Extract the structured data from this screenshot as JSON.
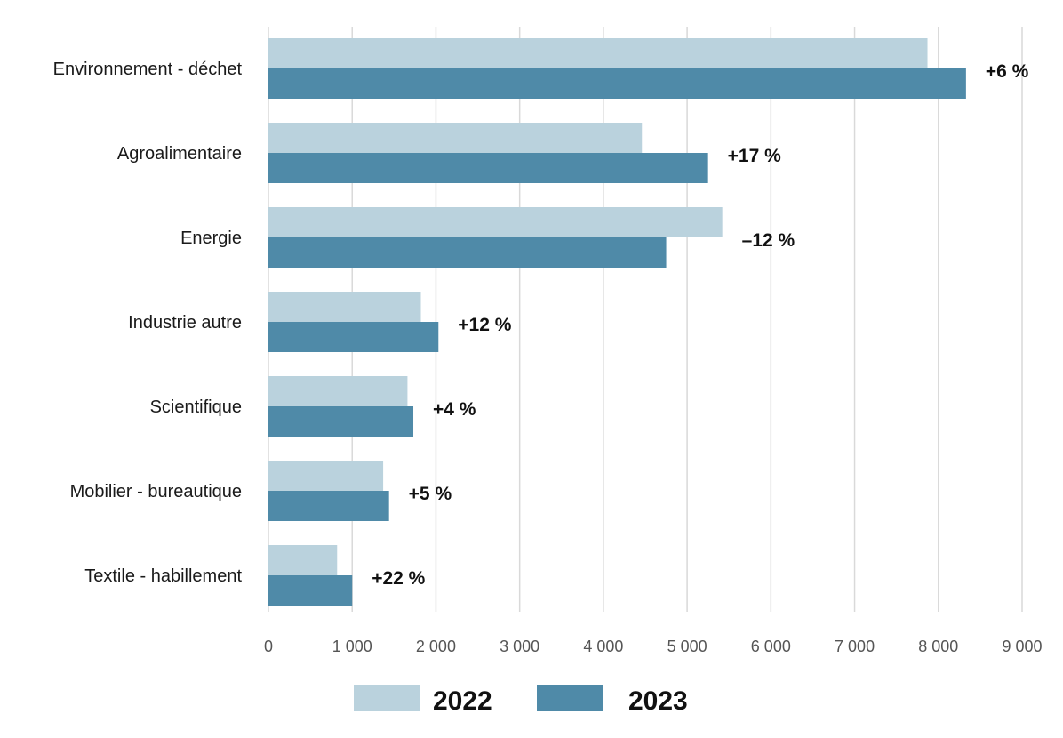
{
  "chart_data": {
    "type": "bar",
    "orientation": "horizontal",
    "categories": [
      "Environnement - déchet",
      "Agroalimentaire",
      "Energie",
      "Industrie autre",
      "Scientifique",
      "Mobilier - bureautique",
      "Textile - habillement"
    ],
    "series": [
      {
        "name": "2022",
        "color": "#bad2dd",
        "values": [
          7870,
          4460,
          5420,
          1820,
          1660,
          1370,
          820
        ]
      },
      {
        "name": "2023",
        "color": "#4f8aa8",
        "values": [
          8330,
          5250,
          4750,
          2030,
          1730,
          1440,
          1000
        ]
      }
    ],
    "change_labels": [
      "+6 %",
      "+17 %",
      "–12 %",
      "+12 %",
      "+4 %",
      "+5 %",
      "+22 %"
    ],
    "xlim": [
      0,
      9000
    ],
    "x_ticks": [
      0,
      1000,
      2000,
      3000,
      4000,
      5000,
      6000,
      7000,
      8000,
      9000
    ],
    "x_tick_labels": [
      "0",
      "1 000",
      "2 000",
      "3 000",
      "4 000",
      "5 000",
      "6 000",
      "7 000",
      "8 000",
      "9 000"
    ],
    "grid": "vertical",
    "legend_placement": "bottom",
    "title": "",
    "xlabel": "",
    "ylabel": ""
  }
}
